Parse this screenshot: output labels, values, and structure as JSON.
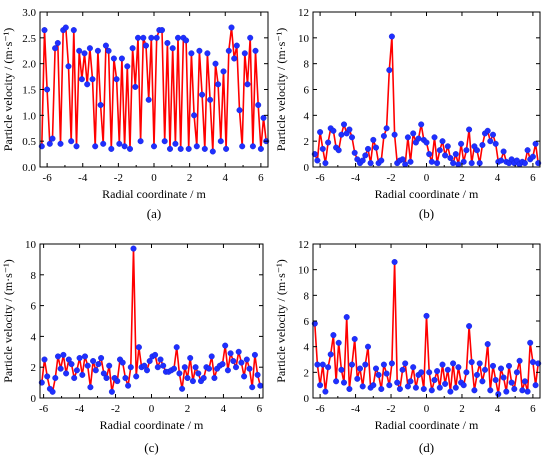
{
  "chart_data": [
    {
      "panel": "(a)",
      "type": "line",
      "xlabel": "Radial coordinate / m",
      "ylabel": "Particle velocity / (m·s⁻¹)",
      "xlim": [
        -6.4,
        6.4
      ],
      "ylim": [
        0.0,
        3.0
      ],
      "xticks": [
        "-6",
        "-4",
        "-2",
        "0",
        "2",
        "4",
        "6"
      ],
      "yticks": [
        "0.0",
        "0.5",
        "1.0",
        "1.5",
        "2.0",
        "2.5",
        "3.0"
      ],
      "series": [
        {
          "x": [
            -6.3,
            -6.15,
            -6.0,
            -5.85,
            -5.7,
            -5.55,
            -5.4,
            -5.25,
            -5.1,
            -4.95,
            -4.8,
            -4.65,
            -4.5,
            -4.35,
            -4.2,
            -4.05,
            -3.9,
            -3.75,
            -3.6,
            -3.45,
            -3.3,
            -3.15,
            -3.0,
            -2.85,
            -2.7,
            -2.55,
            -2.4,
            -2.25,
            -2.1,
            -1.95,
            -1.8,
            -1.65,
            -1.5,
            -1.35,
            -1.2,
            -1.05,
            -0.9,
            -0.75,
            -0.6,
            -0.45,
            -0.3,
            -0.15,
            0.0,
            0.15,
            0.3,
            0.45,
            0.6,
            0.75,
            0.9,
            1.05,
            1.2,
            1.35,
            1.5,
            1.65,
            1.8,
            1.95,
            2.1,
            2.25,
            2.4,
            2.55,
            2.7,
            2.85,
            3.0,
            3.15,
            3.3,
            3.45,
            3.6,
            3.75,
            3.9,
            4.05,
            4.2,
            4.35,
            4.5,
            4.65,
            4.8,
            4.95,
            5.1,
            5.25,
            5.4,
            5.55,
            5.7,
            5.85,
            6.0,
            6.15,
            6.3
          ],
          "y": [
            0.4,
            2.65,
            1.5,
            0.45,
            0.55,
            2.3,
            2.4,
            0.45,
            2.65,
            2.7,
            1.95,
            0.5,
            2.65,
            0.4,
            2.25,
            1.7,
            2.2,
            1.6,
            2.3,
            1.7,
            0.4,
            2.25,
            1.2,
            0.45,
            2.35,
            2.25,
            0.35,
            2.1,
            1.7,
            0.45,
            2.1,
            0.4,
            1.95,
            0.35,
            2.3,
            1.55,
            2.5,
            0.5,
            2.5,
            2.35,
            1.3,
            2.5,
            0.4,
            2.5,
            2.65,
            2.65,
            0.5,
            2.4,
            0.35,
            2.3,
            0.45,
            2.5,
            0.35,
            2.5,
            2.45,
            0.35,
            2.2,
            1.0,
            0.4,
            2.25,
            1.4,
            0.35,
            2.2,
            1.3,
            0.3,
            2.0,
            1.6,
            0.5,
            1.85,
            0.35,
            2.25,
            2.7,
            2.1,
            2.35,
            1.1,
            0.4,
            2.2,
            1.6,
            2.5,
            0.4,
            2.25,
            1.2,
            0.35,
            0.95,
            0.5
          ]
        }
      ]
    },
    {
      "panel": "(b)",
      "type": "line",
      "xlabel": "Radial coordinate / m",
      "ylabel": "Particle velocity / (m·s⁻¹)",
      "xlim": [
        -6.4,
        6.4
      ],
      "ylim": [
        0,
        12
      ],
      "xticks": [
        "-6",
        "-4",
        "-2",
        "0",
        "2",
        "4",
        "6"
      ],
      "yticks": [
        "0",
        "2",
        "4",
        "6",
        "8",
        "10",
        "12"
      ],
      "series": [
        {
          "x": [
            -6.3,
            -6.15,
            -6.0,
            -5.85,
            -5.7,
            -5.55,
            -5.4,
            -5.25,
            -5.1,
            -4.95,
            -4.8,
            -4.65,
            -4.5,
            -4.35,
            -4.2,
            -4.05,
            -3.9,
            -3.75,
            -3.6,
            -3.45,
            -3.3,
            -3.15,
            -3.0,
            -2.85,
            -2.7,
            -2.55,
            -2.4,
            -2.25,
            -2.1,
            -1.95,
            -1.8,
            -1.65,
            -1.5,
            -1.35,
            -1.2,
            -1.05,
            -0.9,
            -0.75,
            -0.6,
            -0.45,
            -0.3,
            -0.15,
            0.0,
            0.15,
            0.3,
            0.45,
            0.6,
            0.75,
            0.9,
            1.05,
            1.2,
            1.35,
            1.5,
            1.65,
            1.8,
            1.95,
            2.1,
            2.25,
            2.4,
            2.55,
            2.7,
            2.85,
            3.0,
            3.15,
            3.3,
            3.45,
            3.6,
            3.75,
            3.9,
            4.05,
            4.2,
            4.35,
            4.5,
            4.65,
            4.8,
            4.95,
            5.1,
            5.25,
            5.4,
            5.55,
            5.7,
            5.85,
            6.0,
            6.15,
            6.3
          ],
          "y": [
            1.0,
            0.5,
            2.7,
            1.4,
            0.3,
            1.9,
            3.0,
            2.8,
            1.5,
            1.3,
            2.5,
            3.3,
            2.6,
            2.9,
            2.3,
            1.1,
            0.6,
            0.3,
            0.5,
            0.9,
            1.4,
            0.3,
            2.1,
            1.5,
            0.3,
            0.5,
            2.4,
            3.0,
            7.5,
            10.1,
            2.5,
            0.3,
            0.5,
            0.6,
            0.2,
            2.3,
            0.4,
            2.6,
            1.9,
            2.2,
            3.3,
            2.1,
            1.9,
            1.0,
            0.4,
            2.3,
            0.3,
            1.3,
            2.0,
            0.9,
            1.6,
            0.7,
            0.3,
            1.0,
            0.2,
            1.8,
            0.4,
            1.3,
            2.9,
            0.3,
            1.6,
            1.3,
            0.3,
            1.7,
            2.6,
            2.8,
            2.0,
            2.5,
            1.8,
            0.4,
            0.5,
            1.2,
            0.4,
            0.3,
            0.6,
            0.3,
            0.5,
            0.2,
            0.4,
            0.3,
            1.3,
            0.6,
            0.8,
            1.8,
            0.3
          ]
        }
      ]
    },
    {
      "panel": "(c)",
      "type": "line",
      "xlabel": "Radial coordinate / m",
      "ylabel": "Particle velocity / (m·s⁻¹)",
      "xlim": [
        -6.2,
        6.2
      ],
      "ylim": [
        0,
        10
      ],
      "xticks": [
        "-6",
        "-4",
        "-2",
        "0",
        "2",
        "4",
        "6"
      ],
      "yticks": [
        "0",
        "2",
        "4",
        "6",
        "8",
        "10"
      ],
      "series": [
        {
          "x": [
            -6.1,
            -5.95,
            -5.8,
            -5.65,
            -5.5,
            -5.35,
            -5.2,
            -5.05,
            -4.9,
            -4.75,
            -4.6,
            -4.45,
            -4.3,
            -4.15,
            -4.0,
            -3.85,
            -3.7,
            -3.55,
            -3.4,
            -3.25,
            -3.1,
            -2.95,
            -2.8,
            -2.65,
            -2.5,
            -2.35,
            -2.2,
            -2.05,
            -1.9,
            -1.75,
            -1.6,
            -1.45,
            -1.3,
            -1.15,
            -1.0,
            -0.85,
            -0.7,
            -0.55,
            -0.4,
            -0.25,
            -0.1,
            0.05,
            0.2,
            0.35,
            0.5,
            0.65,
            0.8,
            0.95,
            1.1,
            1.25,
            1.4,
            1.55,
            1.7,
            1.85,
            2.0,
            2.15,
            2.3,
            2.45,
            2.6,
            2.75,
            2.9,
            3.05,
            3.2,
            3.35,
            3.5,
            3.65,
            3.8,
            3.95,
            4.1,
            4.25,
            4.4,
            4.55,
            4.7,
            4.85,
            5.0,
            5.15,
            5.3,
            5.45,
            5.6,
            5.75,
            5.9,
            6.05
          ],
          "y": [
            1.0,
            2.5,
            1.4,
            0.6,
            0.4,
            1.3,
            2.7,
            1.9,
            2.8,
            1.6,
            2.5,
            2.2,
            1.3,
            1.8,
            2.6,
            1.5,
            2.7,
            2.1,
            0.7,
            2.4,
            1.8,
            2.2,
            2.6,
            1.6,
            1.3,
            2.1,
            0.4,
            1.3,
            1.1,
            2.5,
            2.3,
            1.3,
            0.8,
            2.0,
            9.7,
            1.4,
            3.3,
            2.0,
            2.1,
            1.8,
            2.4,
            2.7,
            2.8,
            2.0,
            2.5,
            2.1,
            1.7,
            1.7,
            1.8,
            1.9,
            3.3,
            1.6,
            0.6,
            2.0,
            1.3,
            2.6,
            1.1,
            2.0,
            1.6,
            1.1,
            1.3,
            2.0,
            1.9,
            2.7,
            1.3,
            1.9,
            2.1,
            2.2,
            3.4,
            1.8,
            2.9,
            2.4,
            2.0,
            3.0,
            2.3,
            1.4,
            2.5,
            1.9,
            0.7,
            2.8,
            1.5,
            0.8
          ]
        }
      ]
    },
    {
      "panel": "(d)",
      "type": "line",
      "xlabel": "Radial coordinate / m",
      "ylabel": "Particle velocity / (m·s⁻¹)",
      "xlim": [
        -6.4,
        6.4
      ],
      "ylim": [
        0,
        12
      ],
      "xticks": [
        "-6",
        "-4",
        "-2",
        "0",
        "2",
        "4",
        "6"
      ],
      "yticks": [
        "0",
        "2",
        "4",
        "6",
        "8",
        "10",
        "12"
      ],
      "series": [
        {
          "x": [
            -6.3,
            -6.15,
            -6.0,
            -5.85,
            -5.7,
            -5.55,
            -5.4,
            -5.25,
            -5.1,
            -4.95,
            -4.8,
            -4.65,
            -4.5,
            -4.35,
            -4.2,
            -4.05,
            -3.9,
            -3.75,
            -3.6,
            -3.45,
            -3.3,
            -3.15,
            -3.0,
            -2.85,
            -2.7,
            -2.55,
            -2.4,
            -2.25,
            -2.1,
            -1.95,
            -1.8,
            -1.65,
            -1.5,
            -1.35,
            -1.2,
            -1.05,
            -0.9,
            -0.75,
            -0.6,
            -0.45,
            -0.3,
            -0.15,
            0.0,
            0.15,
            0.3,
            0.45,
            0.6,
            0.75,
            0.9,
            1.05,
            1.2,
            1.35,
            1.5,
            1.65,
            1.8,
            1.95,
            2.1,
            2.25,
            2.4,
            2.55,
            2.7,
            2.85,
            3.0,
            3.15,
            3.3,
            3.45,
            3.6,
            3.75,
            3.9,
            4.05,
            4.2,
            4.35,
            4.5,
            4.65,
            4.8,
            4.95,
            5.1,
            5.25,
            5.4,
            5.55,
            5.7,
            5.85,
            6.0,
            6.15,
            6.3
          ],
          "y": [
            5.8,
            2.6,
            1.0,
            2.6,
            0.5,
            2.4,
            3.4,
            4.9,
            1.3,
            4.3,
            2.2,
            1.2,
            6.3,
            0.7,
            2.6,
            4.6,
            1.5,
            2.3,
            0.9,
            2.6,
            4.0,
            0.8,
            1.0,
            2.3,
            1.8,
            0.7,
            2.6,
            1.9,
            1.0,
            2.7,
            10.6,
            1.2,
            0.7,
            2.2,
            2.7,
            0.9,
            1.3,
            2.4,
            0.8,
            1.8,
            2.0,
            0.7,
            6.4,
            2.0,
            0.6,
            1.4,
            2.1,
            0.8,
            2.6,
            1.1,
            2.2,
            0.5,
            2.7,
            0.8,
            2.4,
            1.2,
            1.0,
            2.0,
            5.6,
            2.8,
            0.6,
            1.8,
            2.7,
            1.3,
            2.2,
            4.2,
            0.6,
            2.5,
            1.4,
            0.3,
            2.3,
            1.6,
            0.5,
            2.5,
            1.2,
            0.7,
            2.0,
            2.9,
            0.6,
            1.3,
            0.5,
            4.3,
            2.8,
            1.0,
            2.7
          ]
        }
      ]
    }
  ]
}
